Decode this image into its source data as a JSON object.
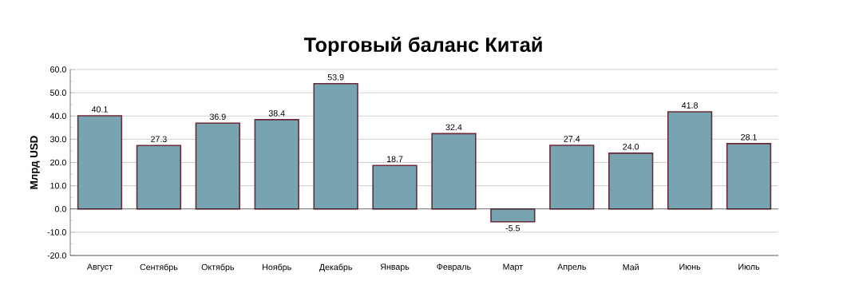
{
  "chart_data": {
    "type": "bar",
    "title": "Торговый баланс Китай",
    "ylabel": "Млрд USD",
    "categories": [
      "Август",
      "Сентябрь",
      "Октябрь",
      "Ноябрь",
      "Декабрь",
      "Январь",
      "Февраль",
      "Март",
      "Апрель",
      "Май",
      "Июнь",
      "Июль"
    ],
    "values": [
      40.1,
      27.3,
      36.9,
      38.4,
      53.9,
      18.7,
      32.4,
      -5.5,
      27.4,
      24.0,
      41.8,
      28.1
    ],
    "color": "#78a4b2",
    "ylim": [
      -20,
      60
    ],
    "yticks": [
      {
        "value": -20,
        "label": "-20.0"
      },
      {
        "value": -10,
        "label": "-10.0"
      },
      {
        "value": 0,
        "label": "0.0"
      },
      {
        "value": 10,
        "label": "10.0"
      },
      {
        "value": 20,
        "label": "20.0"
      },
      {
        "value": 30,
        "label": "30.0"
      },
      {
        "value": 40,
        "label": "40.0"
      },
      {
        "value": 50,
        "label": "50.0"
      },
      {
        "value": 60,
        "label": "60.0"
      }
    ],
    "value_labels": [
      "40.1",
      "27.3",
      "36.9",
      "38.4",
      "53.9",
      "18.7",
      "32.4",
      "-5.5",
      "27.4",
      "24.0",
      "41.8",
      "28.1"
    ],
    "grid": "y"
  }
}
